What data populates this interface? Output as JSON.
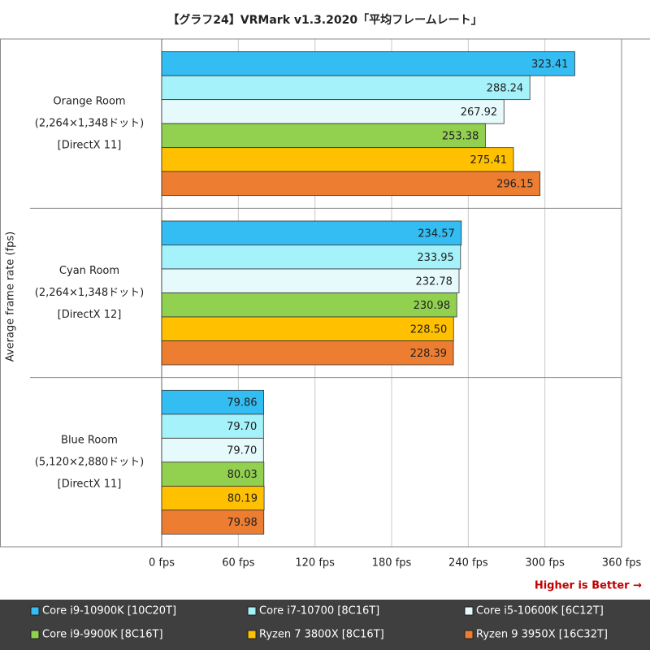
{
  "chart_data": {
    "type": "hbar",
    "title": "【グラフ24】VRMark v1.3.2020「平均フレームレート」",
    "y_label": "Average frame rate (fps)",
    "annotation": "Higher is Better →",
    "categories": [
      [
        "Orange Room",
        "(2,264×1,348ドット)",
        "[DirectX 11]"
      ],
      [
        "Cyan Room",
        "(2,264×1,348ドット)",
        "[DirectX 12]"
      ],
      [
        "Blue Room",
        "(5,120×2,880ドット)",
        "[DirectX 11]"
      ]
    ],
    "series": [
      {
        "name": "Core i9-10900K [10C20T]",
        "color": "#33bdf2",
        "values": [
          323.41,
          234.57,
          79.86
        ],
        "value_labels": [
          "323.41",
          "234.57",
          "79.86"
        ]
      },
      {
        "name": "Core i7-10700 [8C16T]",
        "color": "#a5f2fa",
        "values": [
          288.24,
          233.95,
          79.7
        ],
        "value_labels": [
          "288.24",
          "233.95",
          "79.70"
        ]
      },
      {
        "name": "Core i5-10600K [6C12T]",
        "color": "#e6fafc",
        "values": [
          267.92,
          232.78,
          79.7
        ],
        "value_labels": [
          "267.92",
          "232.78",
          "79.70"
        ]
      },
      {
        "name": "Core i9-9900K [8C16T]",
        "color": "#92d050",
        "values": [
          253.38,
          230.98,
          80.03
        ],
        "value_labels": [
          "253.38",
          "230.98",
          "80.03"
        ]
      },
      {
        "name": "Ryzen 7 3800X [8C16T]",
        "color": "#ffc000",
        "values": [
          275.41,
          228.5,
          80.19
        ],
        "value_labels": [
          "275.41",
          "228.50",
          "80.19"
        ]
      },
      {
        "name": "Ryzen 9 3950X [16C32T]",
        "color": "#ed7d31",
        "values": [
          296.15,
          228.39,
          79.98
        ],
        "value_labels": [
          "296.15",
          "228.39",
          "79.98"
        ]
      }
    ],
    "xlim": [
      0,
      360
    ],
    "xticks": [
      {
        "value": 0,
        "label": "0 fps"
      },
      {
        "value": 60,
        "label": "60 fps"
      },
      {
        "value": 120,
        "label": "120 fps"
      },
      {
        "value": 180,
        "label": "180 fps"
      },
      {
        "value": 240,
        "label": "240 fps"
      },
      {
        "value": 300,
        "label": "300 fps"
      },
      {
        "value": 360,
        "label": "360 fps"
      }
    ],
    "grid": true,
    "legend": "bottom"
  }
}
